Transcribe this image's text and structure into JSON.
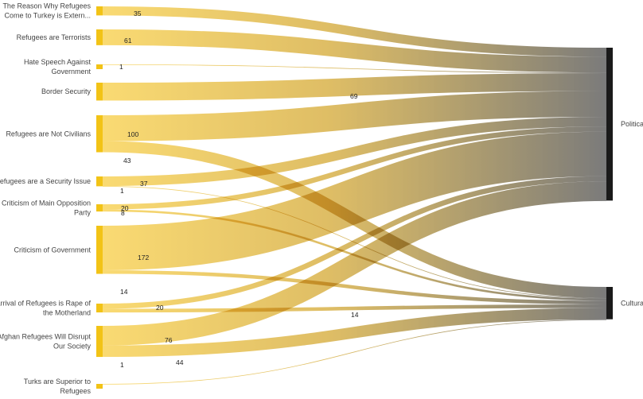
{
  "chart_data": {
    "type": "sankey",
    "sources": [
      {
        "name": "The Reason Why Refugees Come to Turkey is Extern...",
        "lines": [
          "The Reason Why Refugees",
          "Come to Turkey is Extern..."
        ]
      },
      {
        "name": "Refugees are Terrorists",
        "lines": [
          "Refugees are Terrorists"
        ]
      },
      {
        "name": "Hate Speech Against Government",
        "lines": [
          "Hate Speech Against",
          "Government"
        ]
      },
      {
        "name": "Border Security",
        "lines": [
          "Border Security"
        ]
      },
      {
        "name": "Refugees are Not Civilians",
        "lines": [
          "Refugees are Not Civilians"
        ]
      },
      {
        "name": "Refugees are a Security Issue",
        "lines": [
          "Refugees are a Security Issue"
        ]
      },
      {
        "name": "Criticism of Main Opposition Party",
        "lines": [
          "Criticism of Main Opposition",
          "Party"
        ]
      },
      {
        "name": "Criticism of Government",
        "lines": [
          "Criticism of Government"
        ]
      },
      {
        "name": "Arrival of Refugees is Rape of the Motherland",
        "lines": [
          "Arrival of Refugees is Rape of",
          "the Motherland"
        ]
      },
      {
        "name": "Afghan Refugees Will Disrupt Our Society",
        "lines": [
          "Afghan Refugees Will Disrupt",
          "Our Society"
        ]
      },
      {
        "name": "Turks are Superior to Refugees",
        "lines": [
          "Turks are Superior to",
          "Refugees"
        ]
      }
    ],
    "targets": [
      "Political",
      "Cultural"
    ],
    "links": [
      {
        "source": 0,
        "target": 0,
        "value": 35,
        "label": "35"
      },
      {
        "source": 1,
        "target": 0,
        "value": 61,
        "label": "61"
      },
      {
        "source": 2,
        "target": 0,
        "value": 1,
        "label": "1"
      },
      {
        "source": 3,
        "target": 0,
        "value": 69,
        "label": "69"
      },
      {
        "source": 4,
        "target": 0,
        "value": 100,
        "label": "100"
      },
      {
        "source": 4,
        "target": 1,
        "value": 43,
        "label": "43"
      },
      {
        "source": 5,
        "target": 0,
        "value": 37,
        "label": "37"
      },
      {
        "source": 5,
        "target": 1,
        "value": 1,
        "label": "1"
      },
      {
        "source": 6,
        "target": 0,
        "value": 20,
        "label": "20"
      },
      {
        "source": 6,
        "target": 1,
        "value": 8,
        "label": "8"
      },
      {
        "source": 7,
        "target": 0,
        "value": 172,
        "label": "172"
      },
      {
        "source": 7,
        "target": 1,
        "value": 14,
        "label": "14"
      },
      {
        "source": 8,
        "target": 0,
        "value": 20,
        "label": "20"
      },
      {
        "source": 8,
        "target": 1,
        "value": 14,
        "label": "14"
      },
      {
        "source": 9,
        "target": 0,
        "value": 76,
        "label": "76"
      },
      {
        "source": 9,
        "target": 1,
        "value": 44,
        "label": "44"
      },
      {
        "source": 10,
        "target": 1,
        "value": 1,
        "label": "1"
      }
    ],
    "colors": {
      "source_node": "#f2c316",
      "target_node": "#1a1a1a",
      "link_start": "#f7cf48",
      "link_end": "#6e6e6e",
      "text": "#444444"
    }
  }
}
